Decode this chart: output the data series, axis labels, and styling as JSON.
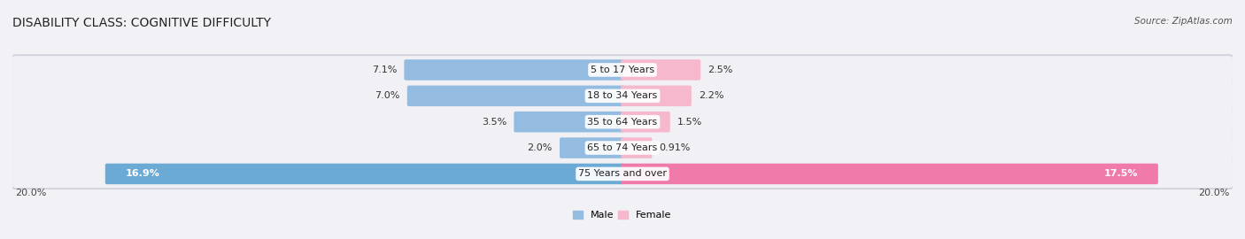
{
  "title": "DISABILITY CLASS: COGNITIVE DIFFICULTY",
  "source": "Source: ZipAtlas.com",
  "categories": [
    "5 to 17 Years",
    "18 to 34 Years",
    "35 to 64 Years",
    "65 to 74 Years",
    "75 Years and over"
  ],
  "male_values": [
    7.1,
    7.0,
    3.5,
    2.0,
    16.9
  ],
  "female_values": [
    2.5,
    2.2,
    1.5,
    0.91,
    17.5
  ],
  "male_labels": [
    "7.1%",
    "7.0%",
    "3.5%",
    "2.0%",
    "16.9%"
  ],
  "female_labels": [
    "2.5%",
    "2.2%",
    "1.5%",
    "0.91%",
    "17.5%"
  ],
  "male_color_normal": "#94bce0",
  "female_color_normal": "#f5b8cc",
  "male_color_large": "#6aaad4",
  "female_color_large": "#f07aaa",
  "row_bg_color": "#e8e8ee",
  "row_inner_bg": "#f4f4f8",
  "max_val": 20.0,
  "axis_label_left": "20.0%",
  "axis_label_right": "20.0%",
  "title_fontsize": 10,
  "label_fontsize": 8,
  "category_fontsize": 8,
  "source_fontsize": 7.5
}
